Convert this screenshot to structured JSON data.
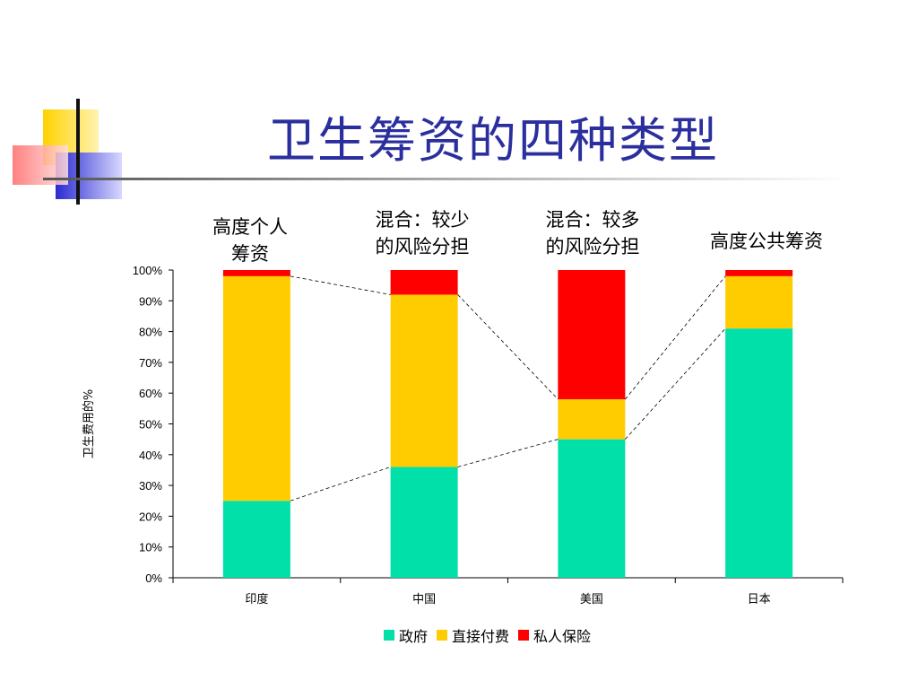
{
  "slide": {
    "title": "卫生筹资的四种类型"
  },
  "annotations": [
    {
      "lines": [
        "高度个人",
        "筹资"
      ]
    },
    {
      "lines": [
        "混合：较少",
        "的风险分担"
      ]
    },
    {
      "lines": [
        "混合：较多",
        "的风险分担"
      ]
    },
    {
      "lines": [
        "高度公共筹资"
      ]
    }
  ],
  "chart_data": {
    "type": "bar",
    "stacked": true,
    "categories": [
      "印度",
      "中国",
      "美国",
      "日本"
    ],
    "series": [
      {
        "name": "政府",
        "values": [
          25,
          36,
          45,
          81
        ],
        "color": "#00e0a8"
      },
      {
        "name": "直接付费",
        "values": [
          73,
          56,
          13,
          17
        ],
        "color": "#ffcc00"
      },
      {
        "name": "私人保险",
        "values": [
          2,
          8,
          42,
          2
        ],
        "color": "#ff0000"
      }
    ],
    "ylabel": "卫生费用的%",
    "ylim": [
      0,
      100
    ],
    "yticks": [
      "0%",
      "10%",
      "20%",
      "30%",
      "40%",
      "50%",
      "60%",
      "70%",
      "80%",
      "90%",
      "100%"
    ],
    "legend": "bottom"
  }
}
